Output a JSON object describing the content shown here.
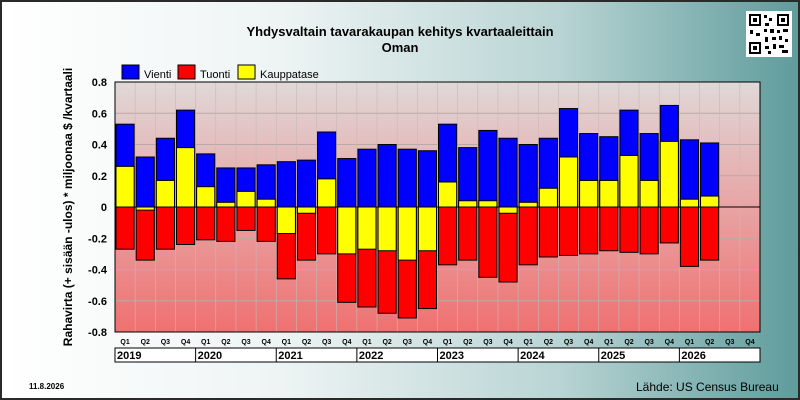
{
  "header": {
    "title": "Yhdysvaltain tavarakaupan kehitys kvartaaleittain",
    "subtitle": "Oman"
  },
  "footer": {
    "date": "11.8.2026",
    "source": "Lähde: US Census Bureau"
  },
  "colors": {
    "export": "#0000ff",
    "import": "#ff0000",
    "balance": "#ffff00",
    "plot_top": "#e0d8d8",
    "plot_bottom": "#f07070"
  },
  "icons": {
    "qr": "qr-code-icon"
  },
  "chart_data": {
    "type": "bar",
    "title": "Yhdysvaltain tavarakaupan kehitys kvartaaleittain",
    "subtitle": "Oman",
    "ylabel": "Rahavirta (+ sisään -ulos)  * miljoonaa $ /kvartaali",
    "ylim": [
      -0.8,
      0.8
    ],
    "yticks": [
      "0.8",
      "0.6",
      "0.4",
      "0.2",
      "0",
      "-0.2",
      "-0.4",
      "-0.6",
      "-0.8"
    ],
    "ytick_values": [
      0.8,
      0.6,
      0.4,
      0.2,
      0,
      -0.2,
      -0.4,
      -0.6,
      -0.8
    ],
    "grid": true,
    "legend_position": "top-left",
    "legend": [
      {
        "key": "export",
        "label": "Vienti"
      },
      {
        "key": "import",
        "label": "Tuonti"
      },
      {
        "key": "balance",
        "label": "Kauppatase"
      }
    ],
    "categories": [
      "Q1",
      "Q2",
      "Q3",
      "Q4",
      "Q1",
      "Q2",
      "Q3",
      "Q4",
      "Q1",
      "Q2",
      "Q3",
      "Q4",
      "Q1",
      "Q2",
      "Q3",
      "Q4",
      "Q1",
      "Q2",
      "Q3",
      "Q4",
      "Q1",
      "Q2",
      "Q3",
      "Q4",
      "Q1",
      "Q2",
      "Q3",
      "Q4",
      "Q1",
      "Q2",
      "Q3",
      "Q4"
    ],
    "years": [
      "2019",
      "2020",
      "2021",
      "2022",
      "2023",
      "2024",
      "2025",
      "2026"
    ],
    "series": [
      {
        "name": "Vienti",
        "key": "export",
        "values": [
          0.53,
          0.32,
          0.44,
          0.62,
          0.34,
          0.25,
          0.25,
          0.27,
          0.29,
          0.3,
          0.48,
          0.31,
          0.37,
          0.4,
          0.37,
          0.36,
          0.53,
          0.38,
          0.49,
          0.44,
          0.4,
          0.44,
          0.63,
          0.47,
          0.45,
          0.62,
          0.47,
          0.65,
          0.43,
          0.41,
          null,
          null
        ]
      },
      {
        "name": "Tuonti",
        "key": "import",
        "values": [
          -0.27,
          -0.34,
          -0.27,
          -0.24,
          -0.21,
          -0.22,
          -0.15,
          -0.22,
          -0.46,
          -0.34,
          -0.3,
          -0.61,
          -0.64,
          -0.68,
          -0.71,
          -0.65,
          -0.37,
          -0.34,
          -0.45,
          -0.48,
          -0.37,
          -0.32,
          -0.31,
          -0.3,
          -0.28,
          -0.29,
          -0.3,
          -0.23,
          -0.38,
          -0.34,
          null,
          null
        ]
      },
      {
        "name": "Kauppatase",
        "key": "balance",
        "values": [
          0.26,
          -0.02,
          0.17,
          0.38,
          0.13,
          0.03,
          0.1,
          0.05,
          -0.17,
          -0.04,
          0.18,
          -0.3,
          -0.27,
          -0.28,
          -0.34,
          -0.28,
          0.16,
          0.04,
          0.04,
          -0.04,
          0.03,
          0.12,
          0.32,
          0.17,
          0.17,
          0.33,
          0.17,
          0.42,
          0.05,
          0.07,
          null,
          null
        ]
      }
    ]
  }
}
